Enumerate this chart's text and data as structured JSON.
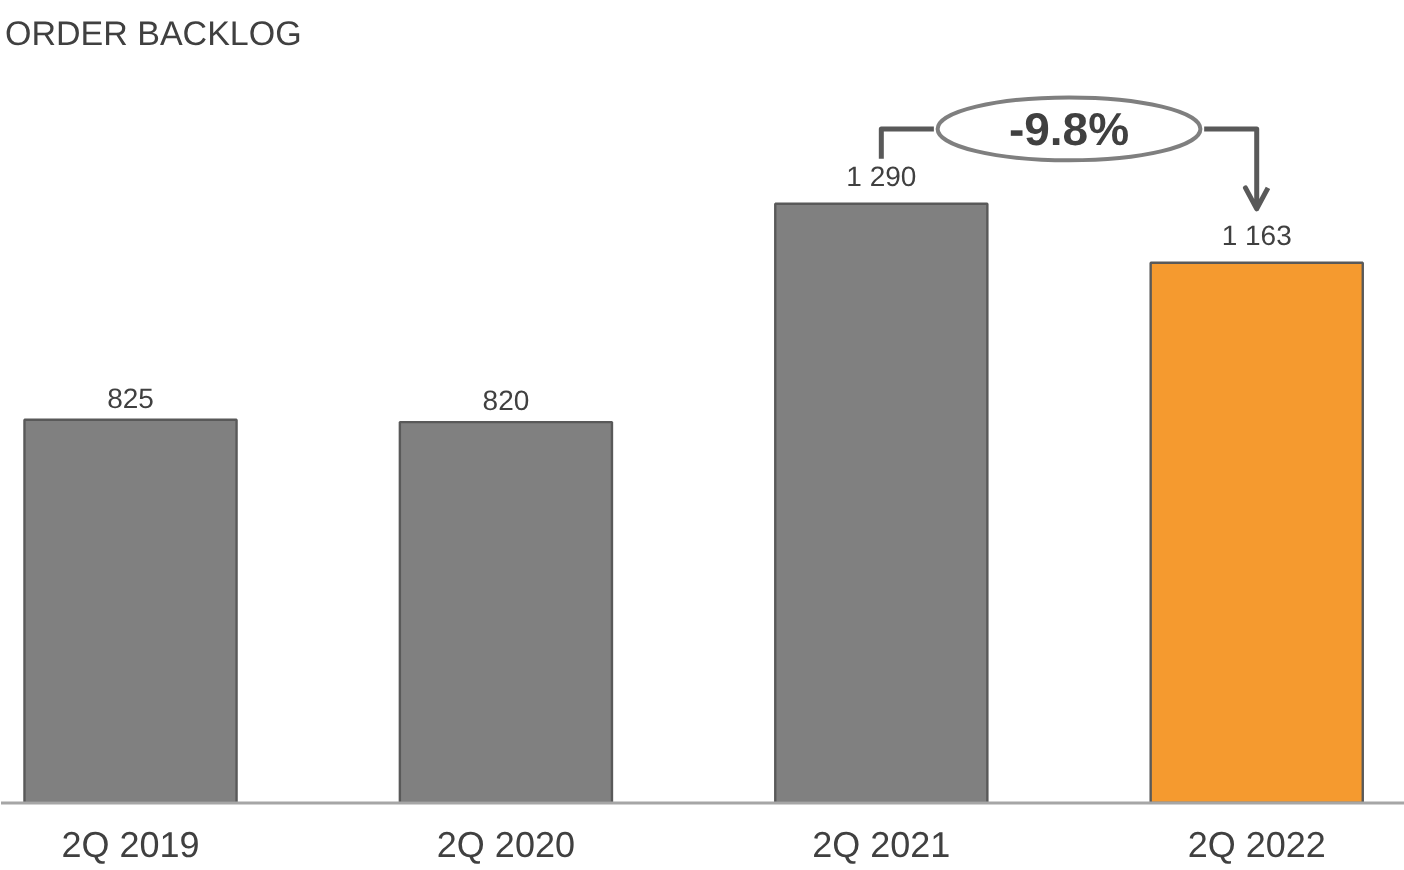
{
  "chart_data": {
    "type": "bar",
    "title": "ORDER BACKLOG",
    "categories": [
      "2Q 2019",
      "2Q 2020",
      "2Q 2021",
      "2Q 2022"
    ],
    "values": [
      825,
      820,
      1290,
      1163
    ],
    "colors": [
      "#808080",
      "#808080",
      "#808080",
      "#f59a2f"
    ],
    "value_labels": [
      "825",
      "820",
      "1 290",
      "1 163"
    ],
    "annotations": [
      "-9.8%"
    ]
  }
}
